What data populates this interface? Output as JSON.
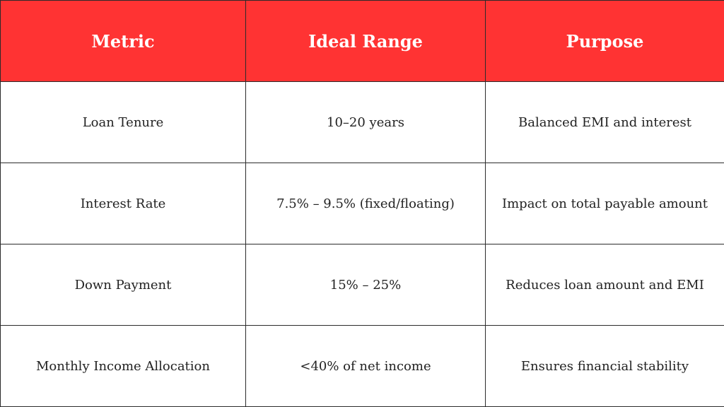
{
  "table": {
    "headers": [
      "Metric",
      "Ideal Range",
      "Purpose"
    ],
    "rows": [
      [
        "Loan Tenure",
        "10–20 years",
        "Balanced EMI and interest"
      ],
      [
        "Interest Rate",
        "7.5% – 9.5% (fixed/floating)",
        "Impact on total payable amount"
      ],
      [
        "Down Payment",
        "15% – 25%",
        "Reduces loan amount and EMI"
      ],
      [
        "Monthly Income Allocation",
        "<40% of net income",
        "Ensures financial stability"
      ]
    ]
  },
  "colors": {
    "header_background": "#ff3333",
    "header_text": "#ffffff",
    "border": "#2b2b2b",
    "body_text": "#222222"
  }
}
